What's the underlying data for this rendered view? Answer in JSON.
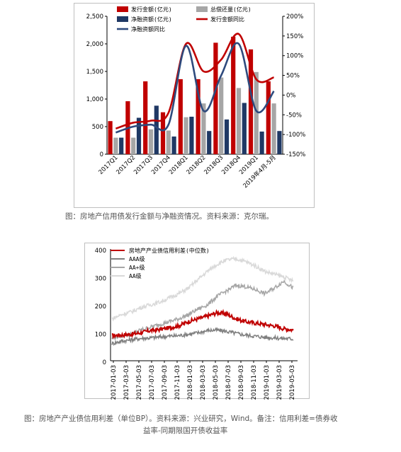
{
  "chart_data": [
    {
      "type": "bar",
      "categories": [
        "2017Q1",
        "2017Q2",
        "2017Q3",
        "2017Q4",
        "2018Q1",
        "2018Q2",
        "2018Q3",
        "2018Q4",
        "2019Q1",
        "2019年4月-5月"
      ],
      "series": [
        {
          "name": "发行金额(亿元)",
          "kind": "bar",
          "axis": "left",
          "color": "#c00000",
          "values": [
            600,
            960,
            1320,
            760,
            1360,
            1360,
            2020,
            2130,
            1900,
            1320
          ]
        },
        {
          "name": "总偿还量(亿元)",
          "kind": "bar",
          "axis": "left",
          "color": "#a6a6a6",
          "values": [
            300,
            300,
            450,
            430,
            670,
            920,
            1390,
            1200,
            1490,
            920
          ]
        },
        {
          "name": "净融资额(亿元)",
          "kind": "bar",
          "axis": "left",
          "color": "#1f3864",
          "values": [
            300,
            660,
            880,
            320,
            680,
            420,
            630,
            930,
            410,
            420
          ]
        },
        {
          "name": "发行金额同比",
          "kind": "line",
          "axis": "right",
          "color": "#c00000",
          "values": [
            -85,
            -70,
            -65,
            -45,
            130,
            60,
            90,
            155,
            40,
            45
          ]
        },
        {
          "name": "净融资额同比",
          "kind": "line",
          "axis": "right",
          "color": "#2e4a7d",
          "values": [
            -95,
            -80,
            -75,
            -75,
            125,
            -40,
            50,
            130,
            -40,
            10
          ]
        }
      ],
      "y_left": {
        "min": 0,
        "max": 2500,
        "ticks": [
          "0",
          "500",
          "1,000",
          "1,500",
          "2,000",
          "2,500"
        ]
      },
      "y_right": {
        "min": -150,
        "max": 200,
        "ticks": [
          "-150%",
          "-100%",
          "-50%",
          "0%",
          "50%",
          "100%",
          "150%",
          "200%"
        ]
      },
      "legend": "top"
    },
    {
      "type": "line",
      "x_ticks": [
        "2017-01-03",
        "2017-03-03",
        "2017-05-03",
        "2017-07-03",
        "2017-09-03",
        "2017-11-03",
        "2018-01-03",
        "2018-03-03",
        "2018-05-03",
        "2018-07-03",
        "2018-09-03",
        "2018-11-03",
        "2019-01-03",
        "2019-03-03",
        "2019-05-03"
      ],
      "y_ticks": [
        "0",
        "100",
        "200",
        "300",
        "400"
      ],
      "ylim": [
        0,
        400
      ],
      "series": [
        {
          "name": "房地产产业债信用利差(中位数)",
          "color": "#c00000",
          "width": 2,
          "values": [
            90,
            92,
            95,
            100,
            108,
            112,
            118,
            125,
            140,
            150,
            160,
            172,
            168,
            150,
            140,
            135,
            130,
            125,
            115,
            110
          ]
        },
        {
          "name": "AAA级",
          "color": "#7f7f7f",
          "width": 1.5,
          "values": [
            62,
            70,
            75,
            80,
            82,
            85,
            88,
            90,
            95,
            100,
            108,
            110,
            105,
            98,
            92,
            88,
            84,
            82,
            80,
            78
          ]
        },
        {
          "name": "AA+级",
          "color": "#a6a6a6",
          "width": 1.5,
          "values": [
            80,
            90,
            95,
            110,
            120,
            130,
            140,
            150,
            165,
            185,
            200,
            230,
            250,
            270,
            265,
            255,
            240,
            260,
            285,
            260
          ]
        },
        {
          "name": "AA级",
          "color": "#d9d9d9",
          "width": 1.5,
          "values": [
            150,
            165,
            175,
            190,
            200,
            210,
            225,
            240,
            260,
            290,
            320,
            345,
            360,
            365,
            355,
            340,
            320,
            310,
            300,
            285
          ]
        }
      ],
      "legend": "top-left"
    }
  ],
  "captions": {
    "fig1": "图：房地产信用债发行金额与净融资情况。资料来源：克尔瑞。",
    "fig2_line1": "图：房地产产业债信用利差（单位BP）。资料来源：兴业研究，Wind。备注：信用利差=债券收",
    "fig2_line2": "益率-同期限国开债收益率"
  }
}
